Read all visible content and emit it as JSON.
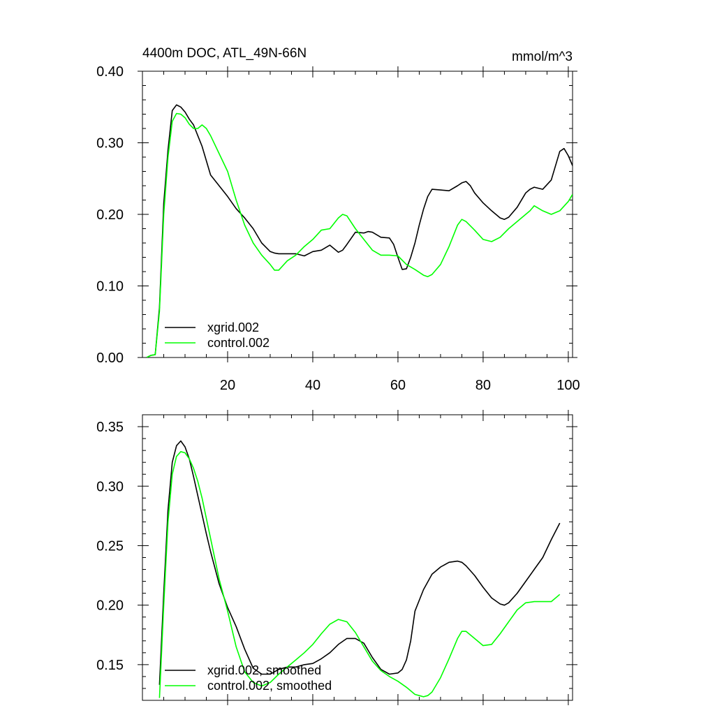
{
  "chart_data": [
    {
      "type": "line",
      "title": "4400m DOC, ATL_49N-66N",
      "units": "mmol/m^3",
      "xlabel": "",
      "ylabel": "",
      "xlim": [
        0,
        101
      ],
      "ylim": [
        0.0,
        0.4
      ],
      "yticks": [
        0.0,
        0.1,
        0.2,
        0.3,
        0.4
      ],
      "ytick_labels": [
        "0.00",
        "0.10",
        "0.20",
        "0.30",
        "0.40"
      ],
      "xticks": [
        20,
        40,
        60,
        80,
        100
      ],
      "xtick_labels": [
        "20",
        "40",
        "60",
        "80",
        "100"
      ],
      "legend_position": "bottom-left",
      "series": [
        {
          "name": "xgrid.002",
          "color": "#000000",
          "x": [
            1,
            2,
            3,
            4,
            5,
            6,
            7,
            8,
            9,
            10,
            11,
            12,
            13,
            14,
            16,
            18,
            20,
            22,
            24,
            26,
            28,
            30,
            31,
            32,
            34,
            36,
            38,
            40,
            42,
            44,
            46,
            47,
            48,
            50,
            52,
            53,
            54,
            56,
            58,
            59,
            60,
            61,
            62,
            63,
            64,
            65,
            66,
            67,
            68,
            70,
            72,
            74,
            75,
            76,
            77,
            78,
            80,
            82,
            84,
            85,
            86,
            88,
            90,
            91,
            92,
            94,
            96,
            98,
            99,
            100,
            101
          ],
          "y": [
            0.0,
            0.003,
            0.004,
            0.07,
            0.215,
            0.29,
            0.345,
            0.353,
            0.35,
            0.343,
            0.333,
            0.325,
            0.31,
            0.295,
            0.255,
            0.24,
            0.225,
            0.208,
            0.195,
            0.18,
            0.16,
            0.148,
            0.146,
            0.145,
            0.145,
            0.145,
            0.142,
            0.148,
            0.15,
            0.157,
            0.147,
            0.15,
            0.158,
            0.175,
            0.174,
            0.176,
            0.175,
            0.168,
            0.167,
            0.158,
            0.14,
            0.123,
            0.124,
            0.14,
            0.16,
            0.185,
            0.207,
            0.225,
            0.235,
            0.234,
            0.233,
            0.24,
            0.244,
            0.246,
            0.24,
            0.23,
            0.216,
            0.205,
            0.195,
            0.193,
            0.196,
            0.21,
            0.23,
            0.235,
            0.238,
            0.235,
            0.248,
            0.288,
            0.292,
            0.282,
            0.268
          ]
        },
        {
          "name": "control.002",
          "color": "#00ff00",
          "x": [
            1,
            2,
            3,
            4,
            5,
            6,
            7,
            8,
            9,
            10,
            11,
            12,
            13,
            14,
            15,
            16,
            18,
            20,
            22,
            24,
            26,
            28,
            30,
            31,
            32,
            34,
            36,
            38,
            40,
            42,
            44,
            46,
            47,
            48,
            50,
            52,
            54,
            56,
            58,
            60,
            62,
            64,
            66,
            67,
            68,
            70,
            72,
            74,
            75,
            76,
            78,
            80,
            82,
            84,
            86,
            88,
            90,
            91,
            92,
            94,
            96,
            98,
            100,
            101
          ],
          "y": [
            0.0,
            0.003,
            0.004,
            0.065,
            0.2,
            0.28,
            0.33,
            0.341,
            0.34,
            0.335,
            0.326,
            0.32,
            0.32,
            0.325,
            0.32,
            0.31,
            0.285,
            0.26,
            0.22,
            0.185,
            0.16,
            0.143,
            0.13,
            0.122,
            0.122,
            0.135,
            0.143,
            0.155,
            0.165,
            0.178,
            0.18,
            0.195,
            0.2,
            0.198,
            0.18,
            0.165,
            0.15,
            0.143,
            0.143,
            0.142,
            0.13,
            0.123,
            0.115,
            0.113,
            0.116,
            0.13,
            0.155,
            0.185,
            0.193,
            0.19,
            0.178,
            0.165,
            0.162,
            0.168,
            0.18,
            0.19,
            0.2,
            0.205,
            0.212,
            0.205,
            0.2,
            0.205,
            0.218,
            0.228
          ]
        }
      ]
    },
    {
      "type": "line",
      "title": "",
      "xlabel": "",
      "ylabel": "",
      "xlim": [
        0,
        101
      ],
      "ylim": [
        0.12,
        0.36
      ],
      "yticks": [
        0.15,
        0.2,
        0.25,
        0.3,
        0.35
      ],
      "ytick_labels": [
        "0.15",
        "0.20",
        "0.25",
        "0.30",
        "0.35"
      ],
      "xticks": [
        20,
        40,
        60,
        80,
        100
      ],
      "xtick_labels": [],
      "legend_position": "bottom-left",
      "series": [
        {
          "name": "xgrid.002, smoothed",
          "color": "#000000",
          "x": [
            4,
            5,
            6,
            7,
            8,
            9,
            10,
            11,
            12,
            13,
            14,
            15,
            16,
            18,
            20,
            22,
            24,
            26,
            28,
            30,
            32,
            34,
            36,
            38,
            40,
            42,
            44,
            46,
            48,
            50,
            52,
            53,
            54,
            56,
            58,
            60,
            61,
            62,
            63,
            64,
            66,
            68,
            70,
            72,
            74,
            75,
            76,
            78,
            80,
            82,
            84,
            85,
            86,
            88,
            90,
            92,
            94,
            96,
            98
          ],
          "y": [
            0.133,
            0.21,
            0.28,
            0.32,
            0.334,
            0.338,
            0.333,
            0.323,
            0.308,
            0.292,
            0.276,
            0.26,
            0.245,
            0.218,
            0.198,
            0.182,
            0.163,
            0.147,
            0.142,
            0.142,
            0.146,
            0.148,
            0.148,
            0.15,
            0.151,
            0.155,
            0.16,
            0.167,
            0.172,
            0.172,
            0.168,
            0.162,
            0.156,
            0.146,
            0.142,
            0.143,
            0.146,
            0.154,
            0.17,
            0.195,
            0.213,
            0.226,
            0.232,
            0.236,
            0.237,
            0.236,
            0.233,
            0.225,
            0.215,
            0.206,
            0.201,
            0.2,
            0.202,
            0.21,
            0.22,
            0.23,
            0.24,
            0.255,
            0.269
          ]
        },
        {
          "name": "control.002, smoothed",
          "color": "#00ff00",
          "x": [
            4,
            5,
            6,
            7,
            8,
            9,
            10,
            11,
            12,
            13,
            14,
            15,
            16,
            18,
            20,
            22,
            24,
            26,
            28,
            30,
            32,
            34,
            36,
            38,
            40,
            42,
            44,
            46,
            48,
            50,
            52,
            54,
            56,
            58,
            60,
            62,
            64,
            65,
            66,
            67,
            68,
            70,
            72,
            74,
            75,
            76,
            78,
            80,
            82,
            84,
            86,
            88,
            90,
            92,
            94,
            96,
            98
          ],
          "y": [
            0.122,
            0.2,
            0.27,
            0.31,
            0.325,
            0.329,
            0.328,
            0.323,
            0.315,
            0.304,
            0.29,
            0.273,
            0.256,
            0.222,
            0.195,
            0.165,
            0.144,
            0.135,
            0.132,
            0.135,
            0.142,
            0.148,
            0.154,
            0.16,
            0.167,
            0.176,
            0.184,
            0.188,
            0.186,
            0.177,
            0.165,
            0.153,
            0.145,
            0.14,
            0.136,
            0.131,
            0.125,
            0.124,
            0.123,
            0.124,
            0.127,
            0.139,
            0.155,
            0.172,
            0.178,
            0.178,
            0.172,
            0.166,
            0.167,
            0.176,
            0.186,
            0.196,
            0.202,
            0.203,
            0.203,
            0.203,
            0.209
          ]
        }
      ]
    }
  ]
}
